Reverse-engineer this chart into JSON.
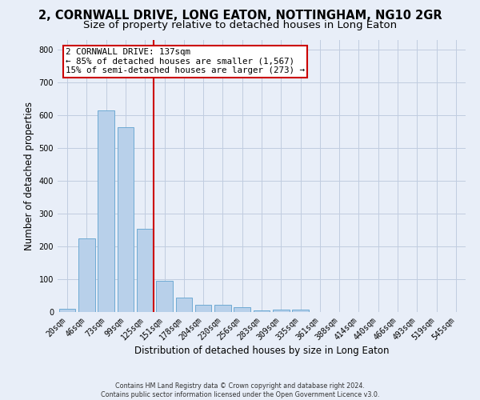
{
  "title": "2, CORNWALL DRIVE, LONG EATON, NOTTINGHAM, NG10 2GR",
  "subtitle": "Size of property relative to detached houses in Long Eaton",
  "xlabel": "Distribution of detached houses by size in Long Eaton",
  "ylabel": "Number of detached properties",
  "categories": [
    "20sqm",
    "46sqm",
    "73sqm",
    "99sqm",
    "125sqm",
    "151sqm",
    "178sqm",
    "204sqm",
    "230sqm",
    "256sqm",
    "283sqm",
    "309sqm",
    "335sqm",
    "361sqm",
    "388sqm",
    "414sqm",
    "440sqm",
    "466sqm",
    "493sqm",
    "519sqm",
    "545sqm"
  ],
  "values": [
    10,
    225,
    615,
    565,
    255,
    95,
    45,
    22,
    22,
    15,
    5,
    8,
    8,
    0,
    0,
    0,
    0,
    0,
    0,
    0,
    0
  ],
  "bar_color": "#b8d0ea",
  "bar_edge_color": "#6eaad4",
  "background_color": "#e8eef8",
  "grid_color": "#c0cce0",
  "annotation_text_line1": "2 CORNWALL DRIVE: 137sqm",
  "annotation_text_line2": "← 85% of detached houses are smaller (1,567)",
  "annotation_text_line3": "15% of semi-detached houses are larger (273) →",
  "red_line_color": "#cc0000",
  "annotation_box_facecolor": "#ffffff",
  "annotation_box_edgecolor": "#cc0000",
  "ylim": [
    0,
    830
  ],
  "title_fontsize": 10.5,
  "subtitle_fontsize": 9.5,
  "footer_text": "Contains HM Land Registry data © Crown copyright and database right 2024.\nContains public sector information licensed under the Open Government Licence v3.0."
}
